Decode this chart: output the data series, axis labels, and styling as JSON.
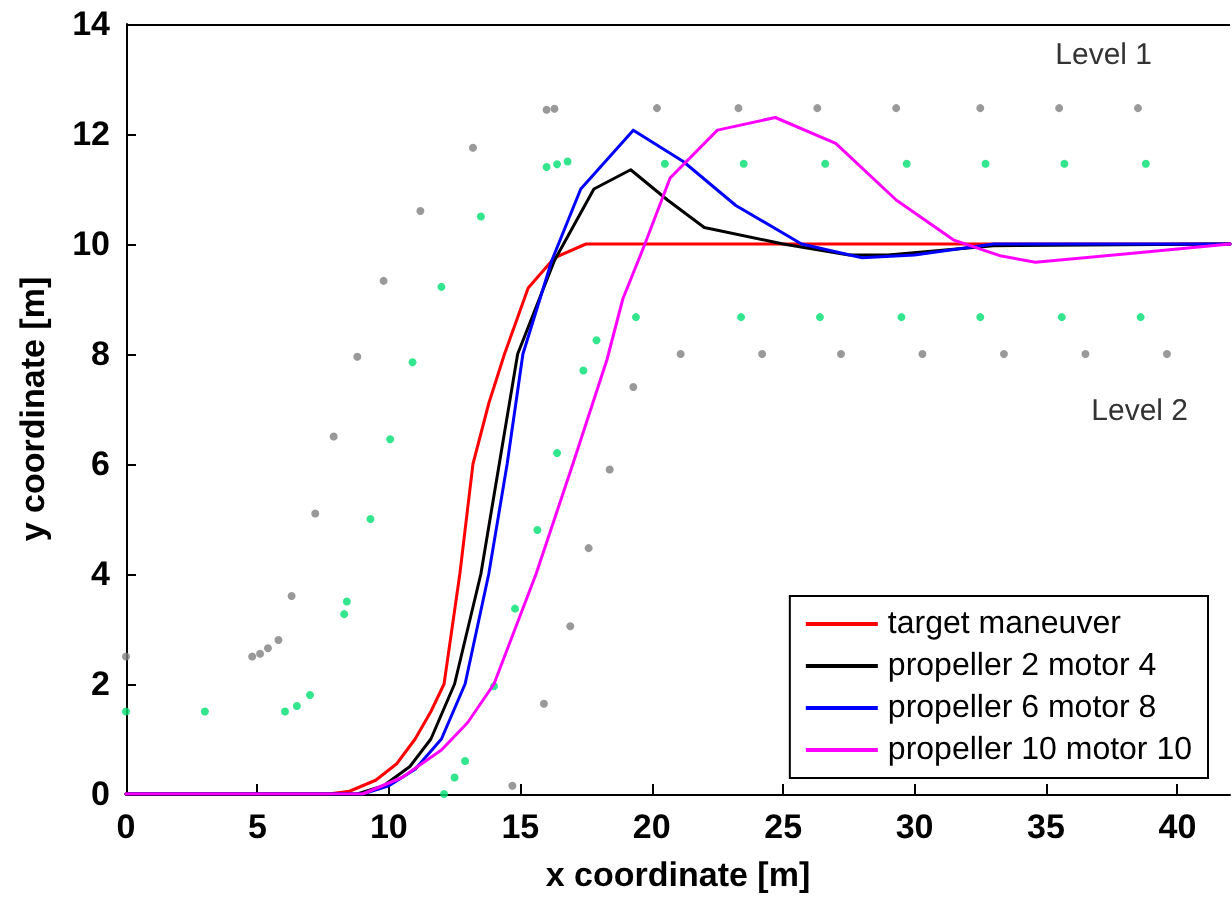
{
  "chart_data": {
    "type": "line",
    "xlabel": "x coordinate [m]",
    "ylabel": "y coordinate [m]",
    "xlim": [
      0,
      42
    ],
    "ylim": [
      0,
      14
    ],
    "xticks": [
      0,
      5,
      10,
      15,
      20,
      25,
      30,
      35,
      40
    ],
    "yticks": [
      0,
      2,
      4,
      6,
      8,
      10,
      12,
      14
    ],
    "grid": false,
    "legend": "bottom right",
    "line_style": "solid",
    "series": [
      {
        "name": "target maneuver",
        "color": "#ff0000",
        "x": [
          0,
          7.7,
          8.5,
          9.5,
          10.3,
          11.0,
          11.6,
          12.1,
          12.7,
          13.2,
          13.8,
          14.4,
          15.3,
          16.3,
          17.5,
          20,
          42
        ],
        "values": [
          0,
          0,
          0.05,
          0.25,
          0.55,
          1,
          1.5,
          2,
          4,
          6,
          7.1,
          8,
          9.2,
          9.75,
          10,
          10,
          10
        ]
      },
      {
        "name": "propeller 2 motor 4",
        "color": "#000000",
        "x": [
          0,
          8.8,
          9.8,
          10.8,
          11.6,
          12.5,
          13.5,
          14.2,
          14.9,
          16.3,
          17.8,
          19.2,
          20.6,
          22,
          25,
          27.5,
          29,
          33,
          42
        ],
        "values": [
          0,
          0,
          0.15,
          0.5,
          1,
          2,
          4,
          6,
          8,
          9.7,
          11,
          11.35,
          10.8,
          10.3,
          10,
          9.8,
          9.8,
          9.97,
          10
        ]
      },
      {
        "name": "propeller 6 motor 8",
        "color": "#0000ff",
        "x": [
          0,
          9,
          10,
          11,
          12,
          12.9,
          13.8,
          14.5,
          15.1,
          16.2,
          17.3,
          19.3,
          21.2,
          23.2,
          25.7,
          28,
          30,
          33,
          42
        ],
        "values": [
          0,
          0,
          0.15,
          0.45,
          1,
          2,
          4,
          6,
          8,
          9.7,
          11,
          12.07,
          11.5,
          10.7,
          10,
          9.75,
          9.8,
          10,
          10
        ]
      },
      {
        "name": "propeller 10 motor 10",
        "color": "#ff00ff",
        "x": [
          0,
          9,
          10.5,
          12,
          13,
          14,
          15.6,
          17,
          18.3,
          18.9,
          19.7,
          20.7,
          22.5,
          24.7,
          27,
          29.3,
          31.5,
          33.3,
          34.6,
          38.3,
          42
        ],
        "values": [
          0,
          0,
          0.3,
          0.8,
          1.3,
          2,
          4,
          6,
          7.9,
          9,
          9.95,
          11.2,
          12.07,
          12.3,
          11.83,
          10.8,
          10.07,
          9.78,
          9.67,
          9.83,
          10
        ]
      },
      {
        "type": "scatter",
        "marker": "circle",
        "color": "#808080",
        "x": [
          0,
          4.8,
          5.1,
          5.4,
          5.8,
          6.3,
          7.2,
          7.9,
          8.8,
          9.8,
          11.2,
          13.2,
          16.0,
          16.3,
          19.3,
          20.2,
          23.3,
          26.3,
          29.3,
          32.5,
          35.5,
          38.5,
          21.1,
          24.2,
          27.2,
          30.3,
          33.4,
          36.5,
          39.6,
          18.4,
          17.6,
          16.9,
          15.9,
          14.7
        ],
        "values": [
          2.5,
          2.5,
          2.55,
          2.65,
          2.8,
          3.6,
          5.1,
          6.5,
          7.95,
          9.33,
          10.6,
          11.75,
          12.44,
          12.46,
          7.4,
          12.47,
          12.47,
          12.47,
          12.47,
          12.47,
          12.47,
          12.47,
          8.0,
          8.0,
          8.0,
          8.0,
          8.0,
          8.0,
          8.0,
          5.9,
          4.47,
          3.05,
          1.64,
          0.15
        ]
      },
      {
        "type": "scatter",
        "marker": "circle",
        "color": "#00e070",
        "x": [
          0,
          3.0,
          6.05,
          6.5,
          7.0,
          8.3,
          8.4,
          9.3,
          10.05,
          10.9,
          12.0,
          13.5,
          16.0,
          16.4,
          16.8,
          17.4,
          17.9,
          12.1,
          12.5,
          12.9,
          14.0,
          14.8,
          15.65,
          16.4,
          20.5,
          23.5,
          26.6,
          29.7,
          32.7,
          35.7,
          38.8,
          19.4,
          23.4,
          26.4,
          29.5,
          32.5,
          35.6,
          38.6
        ],
        "values": [
          1.5,
          1.5,
          1.5,
          1.6,
          1.8,
          3.27,
          3.5,
          5.0,
          6.45,
          7.85,
          9.22,
          10.5,
          11.4,
          11.45,
          11.5,
          7.7,
          8.25,
          0,
          0.3,
          0.6,
          1.96,
          3.37,
          4.8,
          6.2,
          11.46,
          11.46,
          11.46,
          11.46,
          11.46,
          11.46,
          11.46,
          8.67,
          8.67,
          8.67,
          8.67,
          8.67,
          8.67,
          8.67
        ]
      }
    ],
    "annotations": [
      "Level 1",
      "Level 2"
    ]
  }
}
